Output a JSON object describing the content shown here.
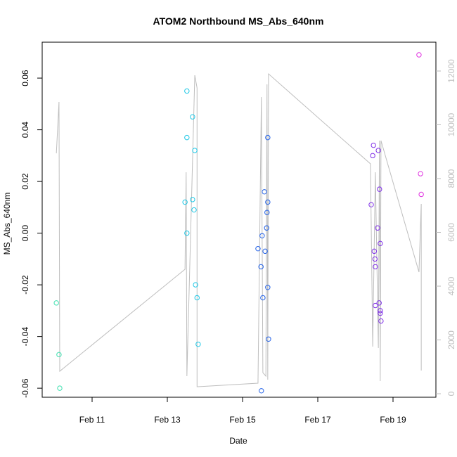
{
  "chart_data": {
    "type": "scatter",
    "title": "ATOM2 Northbound MS_Abs_640nm",
    "x_label": "Date",
    "y_label": "MS_Abs_640nm",
    "xlim": [
      9.673,
      20.14
    ],
    "xticks": [
      {
        "value": 11,
        "label": "Feb 11"
      },
      {
        "value": 13,
        "label": "Feb 13"
      },
      {
        "value": 15,
        "label": "Feb 15"
      },
      {
        "value": 17,
        "label": "Feb 17"
      },
      {
        "value": 19,
        "label": "Feb 19"
      }
    ],
    "ylim": [
      -0.0635,
      0.0739
    ],
    "yticks": [
      -0.06,
      -0.04,
      -0.02,
      {
        "value": 0,
        "label": "0.00"
      },
      0.02,
      0.04,
      0.06
    ],
    "y2lim": [
      -131,
      13072
    ],
    "y2ticks": [
      0,
      2000,
      4000,
      6000,
      8000,
      10000,
      12000
    ],
    "y2_color": "#bebebe",
    "series": [
      {
        "mode": "line",
        "axis": "y2",
        "color": "#bebebe",
        "x": [
          10.05,
          10.12,
          10.14,
          13.47,
          13.5,
          13.52,
          13.73,
          13.79,
          13.79,
          13.82,
          15.41,
          15.5,
          15.54,
          15.62,
          15.65,
          15.67,
          15.69,
          18.4,
          18.46,
          18.53,
          18.61,
          18.64,
          18.66,
          18.68,
          19.69,
          19.75,
          19.75
        ],
        "values": [
          8940,
          10850,
          836,
          4627,
          8234,
          654,
          11842,
          11371,
          261,
          261,
          392,
          11031,
          784,
          654,
          11502,
          523,
          11894,
          8548,
          1751,
          8234,
          1699,
          9411,
          471,
          9411,
          4522,
          7058,
          863
        ]
      },
      {
        "mode": "points",
        "color": "#40e0b0",
        "x": [
          10.05,
          10.12,
          10.14
        ],
        "values": [
          -0.027,
          -0.047,
          -0.06
        ]
      },
      {
        "mode": "points",
        "color": "#1ec8e6",
        "x": [
          13.52,
          13.67,
          13.52,
          13.73,
          13.47,
          13.67,
          13.71,
          13.52,
          13.75,
          13.79,
          13.82
        ],
        "values": [
          0.055,
          0.045,
          0.037,
          0.032,
          0.012,
          0.013,
          0.009,
          0.0,
          -0.02,
          -0.025,
          -0.043
        ]
      },
      {
        "mode": "points",
        "color": "#2060e8",
        "x": [
          15.67,
          15.58,
          15.67,
          15.65,
          15.64,
          15.52,
          15.41,
          15.6,
          15.49,
          15.67,
          15.54,
          15.69,
          15.5
        ],
        "values": [
          0.037,
          0.016,
          0.012,
          0.008,
          0.002,
          -0.001,
          -0.006,
          -0.007,
          -0.013,
          -0.021,
          -0.025,
          -0.041,
          -0.061
        ]
      },
      {
        "mode": "points",
        "color": "#8030e8",
        "x": [
          18.48,
          18.46,
          18.61,
          18.42,
          18.64,
          18.59,
          18.66,
          18.5,
          18.52,
          18.53,
          18.53,
          18.63,
          18.66,
          18.66,
          18.68
        ],
        "values": [
          0.034,
          0.03,
          0.032,
          0.011,
          0.017,
          0.002,
          -0.004,
          -0.007,
          -0.01,
          -0.013,
          -0.028,
          -0.027,
          -0.03,
          -0.031,
          -0.034
        ]
      },
      {
        "mode": "points",
        "color": "#e030e0",
        "x": [
          19.69,
          19.73,
          19.75
        ],
        "values": [
          0.069,
          0.023,
          0.015
        ]
      }
    ]
  }
}
